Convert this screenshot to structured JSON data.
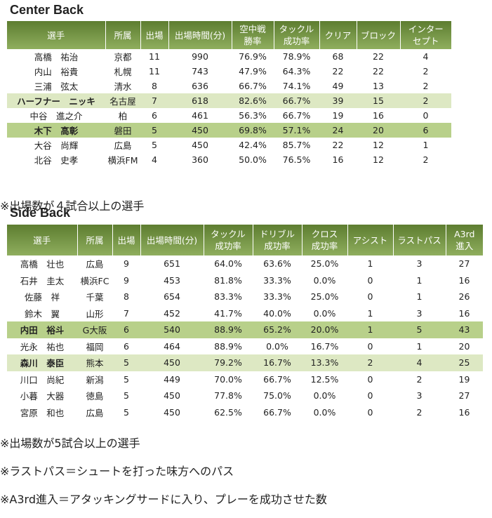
{
  "center_back": {
    "title": "Center Back",
    "header": [
      [
        "選手"
      ],
      [
        "所属"
      ],
      [
        "出場"
      ],
      [
        "出場時間(分)"
      ],
      [
        "空中戦",
        "勝率"
      ],
      [
        "タックル",
        "成功率"
      ],
      [
        "クリア"
      ],
      [
        "ブロック"
      ],
      [
        "インター",
        "セプト"
      ]
    ],
    "rows": [
      [
        "高橋　祐治",
        "京都",
        "11",
        "990",
        "76.9%",
        "78.9%",
        "68",
        "22",
        "4"
      ],
      [
        "内山　裕貴",
        "札幌",
        "11",
        "743",
        "47.9%",
        "64.3%",
        "22",
        "22",
        "2"
      ],
      [
        "三浦　弦太",
        "清水",
        "8",
        "636",
        "66.7%",
        "74.1%",
        "49",
        "13",
        "2"
      ],
      [
        "ハーフナー　ニッキ",
        "名古屋",
        "7",
        "618",
        "82.6%",
        "66.7%",
        "39",
        "15",
        "2"
      ],
      [
        "中谷　進之介",
        "柏",
        "6",
        "461",
        "56.3%",
        "66.7%",
        "19",
        "16",
        "0"
      ],
      [
        "木下　高彰",
        "磐田",
        "5",
        "450",
        "69.8%",
        "57.1%",
        "24",
        "20",
        "6"
      ],
      [
        "大谷　尚輝",
        "広島",
        "5",
        "450",
        "42.4%",
        "85.7%",
        "22",
        "12",
        "1"
      ],
      [
        "北谷　史孝",
        "横浜FM",
        "4",
        "360",
        "50.0%",
        "76.5%",
        "16",
        "12",
        "2"
      ]
    ],
    "notes": [
      "※出場数が４試合以上の選手"
    ]
  },
  "side_back": {
    "title": "Side Back",
    "header": [
      [
        "選手"
      ],
      [
        "所属"
      ],
      [
        "出場"
      ],
      [
        "出場時間(分)"
      ],
      [
        "タックル",
        "成功率"
      ],
      [
        "ドリブル",
        "成功率"
      ],
      [
        "クロス",
        "成功率"
      ],
      [
        "アシスト"
      ],
      [
        "ラストパス"
      ],
      [
        "A3rd",
        "進入"
      ]
    ],
    "rows": [
      [
        "高橋　壮也",
        "広島",
        "9",
        "651",
        "64.0%",
        "63.6%",
        "25.0%",
        "1",
        "3",
        "27"
      ],
      [
        "石井　圭太",
        "横浜FC",
        "9",
        "453",
        "81.8%",
        "33.3%",
        "0.0%",
        "0",
        "1",
        "16"
      ],
      [
        "佐藤　祥",
        "千葉",
        "8",
        "654",
        "83.3%",
        "33.3%",
        "25.0%",
        "0",
        "1",
        "26"
      ],
      [
        "鈴木　翼",
        "山形",
        "7",
        "452",
        "41.7%",
        "40.0%",
        "0.0%",
        "1",
        "3",
        "16"
      ],
      [
        "内田　裕斗",
        "G大阪",
        "6",
        "540",
        "88.9%",
        "65.2%",
        "20.0%",
        "1",
        "5",
        "43"
      ],
      [
        "光永　祐也",
        "福岡",
        "6",
        "464",
        "88.9%",
        "0.0%",
        "16.7%",
        "0",
        "1",
        "20"
      ],
      [
        "森川　泰臣",
        "熊本",
        "5",
        "450",
        "79.2%",
        "16.7%",
        "13.3%",
        "2",
        "4",
        "25"
      ],
      [
        "川口　尚紀",
        "新潟",
        "5",
        "449",
        "70.0%",
        "66.7%",
        "12.5%",
        "0",
        "2",
        "19"
      ],
      [
        "小暮　大器",
        "徳島",
        "5",
        "450",
        "77.8%",
        "75.0%",
        "0.0%",
        "0",
        "3",
        "27"
      ],
      [
        "宮原　和也",
        "広島",
        "5",
        "450",
        "62.5%",
        "66.7%",
        "0.0%",
        "0",
        "2",
        "16"
      ]
    ],
    "notes": [
      "※出場数が5試合以上の選手",
      "※ラストパス＝シュートを打った味方へのパス",
      "※A3rd進入＝アタッキングサードに入り、プレーを成功させた数"
    ]
  }
}
